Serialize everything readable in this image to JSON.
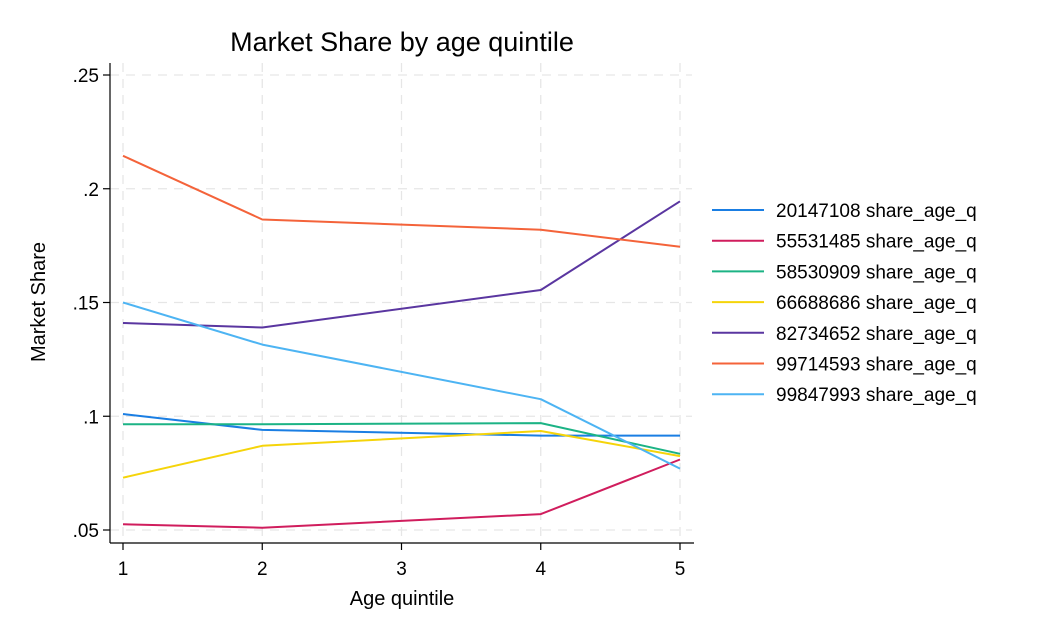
{
  "chart_data": {
    "type": "line",
    "title": "Market Share by age quintile",
    "xlabel": "Age quintile",
    "ylabel": "Market Share",
    "x": [
      1,
      2,
      3,
      4,
      5
    ],
    "xticks": [
      1,
      2,
      3,
      4,
      5
    ],
    "xtick_labels": [
      "1",
      "2",
      "3",
      "4",
      "5"
    ],
    "yticks": [
      0.05,
      0.1,
      0.15,
      0.2,
      0.25
    ],
    "ytick_labels": [
      ".05",
      ".1",
      ".15",
      ".2",
      ".25"
    ],
    "xlim": [
      1,
      5
    ],
    "ylim": [
      0.05,
      0.25
    ],
    "grid": true,
    "legend_position": "right",
    "series": [
      {
        "name": "20147108 share_age_q",
        "color": "#1a7ee3",
        "x": [
          1,
          2,
          4,
          5
        ],
        "values": [
          0.101,
          0.094,
          0.0915,
          0.0915
        ]
      },
      {
        "name": "55531485 share_age_q",
        "color": "#d01d5d",
        "x": [
          1,
          2,
          4,
          5
        ],
        "values": [
          0.0525,
          0.051,
          0.057,
          0.081
        ]
      },
      {
        "name": "58530909 share_age_q",
        "color": "#1cb385",
        "x": [
          1,
          2,
          4,
          5
        ],
        "values": [
          0.0965,
          0.0965,
          0.097,
          0.0835
        ]
      },
      {
        "name": "66688686 share_age_q",
        "color": "#f5d40a",
        "x": [
          1,
          2,
          4,
          5
        ],
        "values": [
          0.073,
          0.087,
          0.0935,
          0.0825
        ]
      },
      {
        "name": "82734652 share_age_q",
        "color": "#5a36a0",
        "x": [
          1,
          2,
          4,
          5
        ],
        "values": [
          0.141,
          0.139,
          0.1555,
          0.1945
        ]
      },
      {
        "name": "99714593 share_age_q",
        "color": "#f4633a",
        "x": [
          1,
          2,
          4,
          5
        ],
        "values": [
          0.2145,
          0.1865,
          0.182,
          0.1745
        ]
      },
      {
        "name": "99847993 share_age_q",
        "color": "#4db4f3",
        "x": [
          1,
          2,
          4,
          5
        ],
        "values": [
          0.15,
          0.1315,
          0.1075,
          0.077
        ]
      }
    ]
  }
}
